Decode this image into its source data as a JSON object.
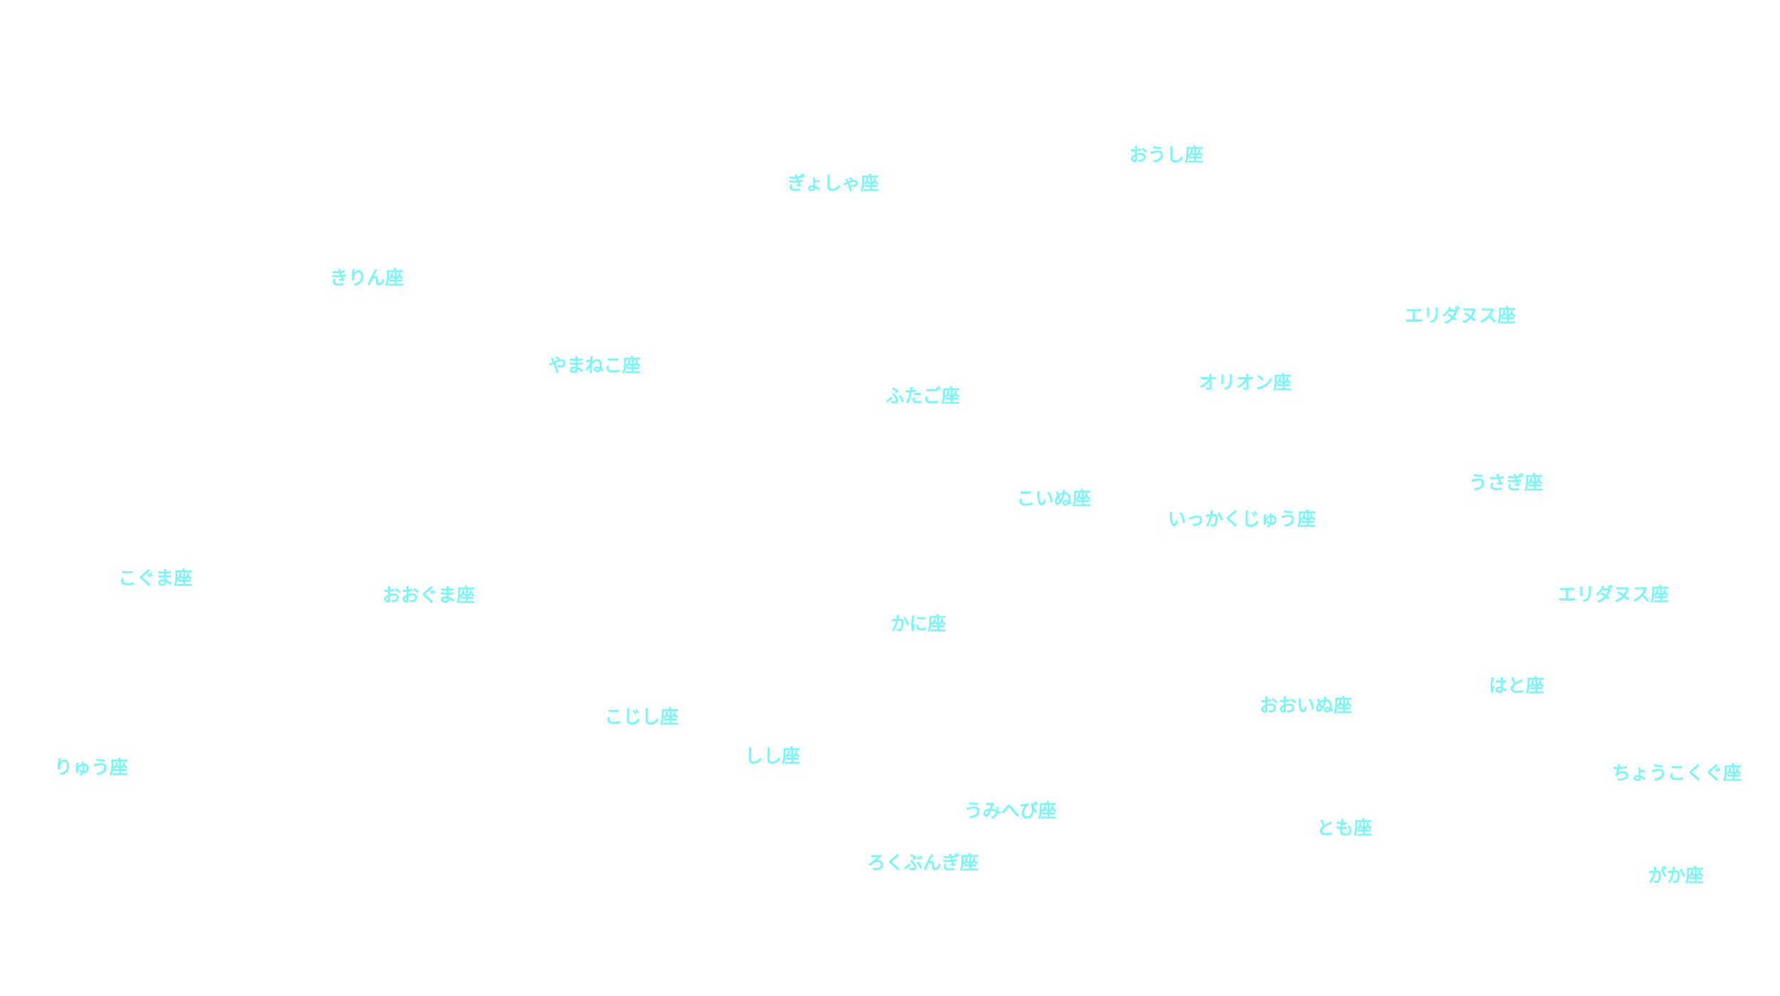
{
  "labels": [
    "おうし座",
    "ぎょしゃ座",
    "きりん座",
    "エリダヌス座",
    "やまねこ座",
    "オリオン座",
    "ふたご座",
    "うさぎ座",
    "こいぬ座",
    "いっかくじゅう座",
    "こぐま座",
    "おおぐま座",
    "エリダヌス座",
    "かに座",
    "はと座",
    "おおいぬ座",
    "こじし座",
    "しし座",
    "りゅう座",
    "ちょうこくぐ座",
    "うみへび座",
    "とも座",
    "ろくぶんぎ座",
    "がか座"
  ]
}
